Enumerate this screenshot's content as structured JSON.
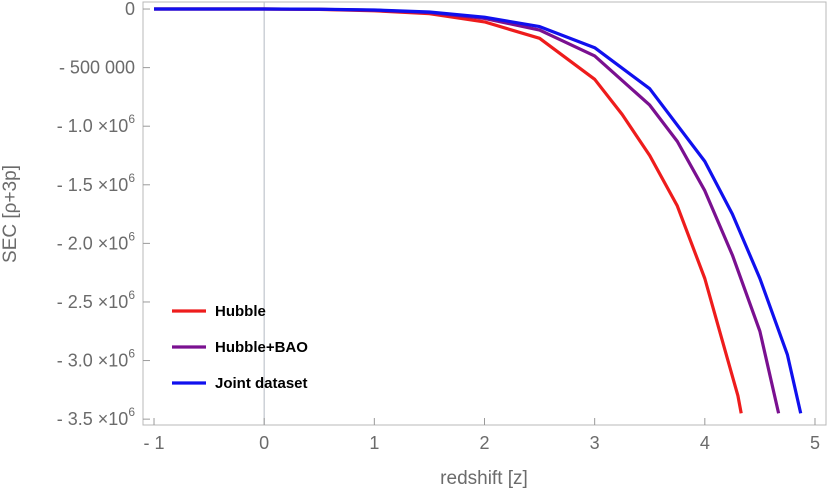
{
  "chart_data": {
    "type": "line",
    "xlabel": "redshift [z]",
    "ylabel": "SEC [ρ+3p]",
    "xlim": [
      -1.1,
      5.1
    ],
    "ylim": [
      -3550000,
      60000
    ],
    "x_ticks": [
      {
        "value": -1,
        "label": "- 1"
      },
      {
        "value": 0,
        "label": "0"
      },
      {
        "value": 1,
        "label": "1"
      },
      {
        "value": 2,
        "label": "2"
      },
      {
        "value": 3,
        "label": "3"
      },
      {
        "value": 4,
        "label": "4"
      },
      {
        "value": 5,
        "label": "5"
      }
    ],
    "y_ticks": [
      {
        "value": 0,
        "label": "0"
      },
      {
        "value": -500000,
        "label": "- 500 000"
      },
      {
        "value": -1000000,
        "label": "- 1.0 ×10",
        "exp": "6"
      },
      {
        "value": -1500000,
        "label": "- 1.5 ×10",
        "exp": "6"
      },
      {
        "value": -2000000,
        "label": "- 2.0 ×10",
        "exp": "6"
      },
      {
        "value": -2500000,
        "label": "- 2.5 ×10",
        "exp": "6"
      },
      {
        "value": -3000000,
        "label": "- 3.0 ×10",
        "exp": "6"
      },
      {
        "value": -3500000,
        "label": "- 3.5 ×10",
        "exp": "6"
      }
    ],
    "vertical_reference_line_x": 0,
    "grid": false,
    "legend_position": "bottom-left",
    "series": [
      {
        "name": "Hubble",
        "color": "#ee1c1c",
        "x": [
          -1,
          -0.5,
          0,
          0.5,
          1,
          1.5,
          2,
          2.5,
          3,
          3.25,
          3.5,
          3.75,
          4,
          4.15,
          4.3,
          4.33
        ],
        "y": [
          0,
          0,
          0,
          -3000,
          -15000,
          -40000,
          -110000,
          -250000,
          -600000,
          -900000,
          -1250000,
          -1680000,
          -2300000,
          -2800000,
          -3300000,
          -3450000
        ]
      },
      {
        "name": "Hubble+BAO",
        "color": "#7a1090",
        "x": [
          -1,
          -0.5,
          0,
          0.5,
          1,
          1.5,
          2,
          2.5,
          3,
          3.5,
          3.75,
          4,
          4.25,
          4.5,
          4.67
        ],
        "y": [
          0,
          0,
          0,
          -2000,
          -10000,
          -30000,
          -80000,
          -180000,
          -400000,
          -820000,
          -1130000,
          -1550000,
          -2100000,
          -2750000,
          -3450000
        ]
      },
      {
        "name": "Joint dataset",
        "color": "#1010ee",
        "x": [
          -1,
          -0.5,
          0,
          0.5,
          1,
          1.5,
          2,
          2.5,
          3,
          3.5,
          4,
          4.25,
          4.5,
          4.75,
          4.87
        ],
        "y": [
          0,
          0,
          0,
          -1500,
          -8000,
          -25000,
          -70000,
          -150000,
          -330000,
          -680000,
          -1300000,
          -1750000,
          -2300000,
          -2950000,
          -3450000
        ]
      }
    ]
  }
}
